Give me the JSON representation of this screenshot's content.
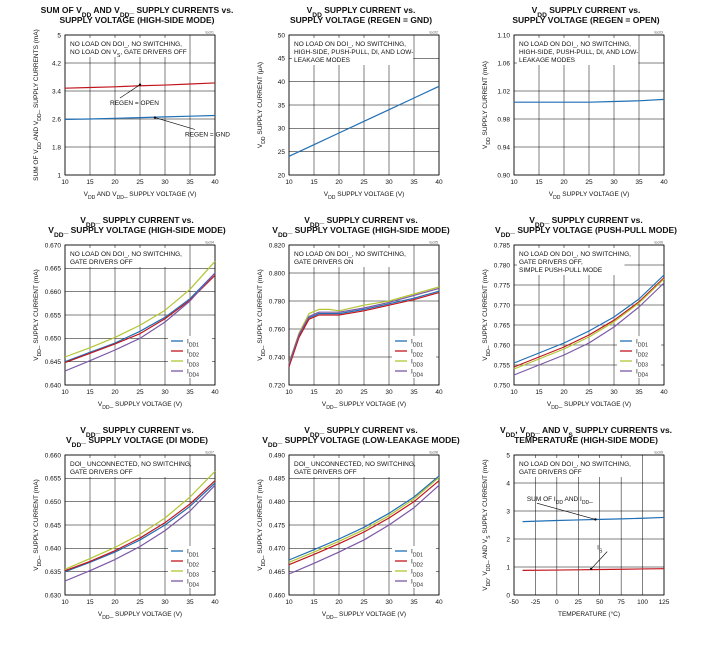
{
  "colors": {
    "blue": "#1f6fb5",
    "red": "#c2161e",
    "green": "#b3c531",
    "purple": "#7b57a6",
    "grid": "#000000"
  },
  "chart_data": [
    {
      "type": "line",
      "title": [
        "SUM OF V_DD AND V_DD_ SUPPLY CURRENTS vs.",
        "SUPPLY VOLTAGE (HIGH-SIDE MODE)"
      ],
      "code": "toc01",
      "xlabel": "V_DD AND V_DD_ SUPPLY VOLTAGE (V)",
      "ylabel": "SUM OF V_DD AND V_DD_ SUPPLY CURRENTS (mA)",
      "xlim": [
        10,
        40
      ],
      "ylim": [
        1.0,
        5.0
      ],
      "xticks": [
        "10",
        "15",
        "20",
        "25",
        "30",
        "35",
        "40"
      ],
      "yticks": [
        "1",
        "1.8",
        "2.6",
        "3.4",
        "4.2",
        "5"
      ],
      "grid": true,
      "notes": [
        "NO LOAD ON DOI_, NO SWITCHING,",
        "NO LOAD ON V_S, GATE DRIVERS OFF"
      ],
      "annotations": [
        {
          "text": "REGEN = OPEN",
          "x": 19,
          "y": 3.0,
          "arrow_to": [
            25,
            3.58
          ]
        },
        {
          "text": "REGEN = GND",
          "x": 34,
          "y": 2.1,
          "arrow_to": [
            28,
            2.64
          ]
        }
      ],
      "series": [
        {
          "color": "red",
          "x": [
            10,
            15,
            20,
            25,
            30,
            35,
            40
          ],
          "y": [
            3.48,
            3.5,
            3.52,
            3.55,
            3.57,
            3.6,
            3.63
          ]
        },
        {
          "color": "blue",
          "x": [
            10,
            15,
            20,
            25,
            30,
            35,
            40
          ],
          "y": [
            2.59,
            2.6,
            2.62,
            2.64,
            2.66,
            2.68,
            2.7
          ]
        }
      ]
    },
    {
      "type": "line",
      "title": [
        "V_DD SUPPLY CURRENT vs.",
        "SUPPLY VOLTAGE (REGEN = GND)"
      ],
      "code": "toc02",
      "xlabel": "V_DD SUPPLY VOLTAGE (V)",
      "ylabel": "V_DD SUPPLY CURRENT (μA)",
      "xlim": [
        10,
        40
      ],
      "ylim": [
        20,
        50
      ],
      "xticks": [
        "10",
        "15",
        "20",
        "25",
        "30",
        "35",
        "40"
      ],
      "yticks": [
        "20",
        "25",
        "30",
        "35",
        "40",
        "45",
        "50"
      ],
      "grid": true,
      "notes": [
        "NO LOAD ON DOI_, NO SWITCHING,",
        "HIGH-SIDE, PUSH-PULL, DI, AND LOW-",
        "LEAKAGE MODES"
      ],
      "annotations": [],
      "series": [
        {
          "color": "blue",
          "x": [
            10,
            15,
            20,
            25,
            30,
            35,
            40
          ],
          "y": [
            24.0,
            26.5,
            29.0,
            31.5,
            34.0,
            36.5,
            39.0
          ]
        }
      ]
    },
    {
      "type": "line",
      "title": [
        "V_DD SUPPLY CURRENT vs.",
        "SUPPLY VOLTAGE (REGEN = OPEN)"
      ],
      "code": "toc03",
      "xlabel": "V_DD SUPPLY VOLTAGE (V)",
      "ylabel": "V_DD SUPPLY CURRENT (mA)",
      "xlim": [
        10,
        40
      ],
      "ylim": [
        0.9,
        1.1
      ],
      "xticks": [
        "10",
        "15",
        "20",
        "25",
        "30",
        "35",
        "40"
      ],
      "yticks": [
        "0.90",
        "0.94",
        "0.98",
        "1.02",
        "1.06",
        "1.10"
      ],
      "grid": true,
      "notes": [
        "NO LOAD ON DOI_, NO SWITCHING,",
        "HIGH-SIDE, PUSH-PULL, DI, AND LOW-",
        "LEAKAGE MODES"
      ],
      "annotations": [],
      "series": [
        {
          "color": "blue",
          "x": [
            10,
            15,
            20,
            25,
            30,
            35,
            40
          ],
          "y": [
            1.004,
            1.004,
            1.004,
            1.004,
            1.005,
            1.006,
            1.008
          ]
        }
      ]
    },
    {
      "type": "line",
      "title": [
        "V_DD_ SUPPLY CURRENT vs.",
        "V_DD_ SUPPLY VOLTAGE (HIGH-SIDE MODE)"
      ],
      "code": "toc04",
      "xlabel": "V_DD_ SUPPLY VOLTAGE (V)",
      "ylabel": "V_DD_ SUPPLY CURRENT (mA)",
      "xlim": [
        10,
        40
      ],
      "ylim": [
        0.64,
        0.67
      ],
      "xticks": [
        "10",
        "15",
        "20",
        "25",
        "30",
        "35",
        "40"
      ],
      "yticks": [
        "0.640",
        "0.645",
        "0.650",
        "0.655",
        "0.660",
        "0.665",
        "0.670"
      ],
      "grid": true,
      "notes": [
        "NO LOAD ON DOI_, NO SWITCHING,",
        "GATE DRIVERS OFF"
      ],
      "annotations": [],
      "legend": [
        "I_DD1",
        "I_DD2",
        "I_DD3",
        "I_DD4"
      ],
      "series": [
        {
          "name": "I_DD1",
          "color": "blue",
          "x": [
            10,
            15,
            20,
            25,
            30,
            35,
            40
          ],
          "y": [
            0.645,
            0.647,
            0.649,
            0.6515,
            0.6545,
            0.6585,
            0.664
          ]
        },
        {
          "name": "I_DD2",
          "color": "red",
          "x": [
            10,
            15,
            20,
            25,
            30,
            35,
            40
          ],
          "y": [
            0.6448,
            0.6468,
            0.6488,
            0.651,
            0.6542,
            0.6582,
            0.6635
          ]
        },
        {
          "name": "I_DD3",
          "color": "green",
          "x": [
            10,
            15,
            20,
            25,
            30,
            35,
            40
          ],
          "y": [
            0.646,
            0.648,
            0.6502,
            0.6528,
            0.656,
            0.6605,
            0.6665
          ]
        },
        {
          "name": "I_DD4",
          "color": "purple",
          "x": [
            10,
            15,
            20,
            25,
            30,
            35,
            40
          ],
          "y": [
            0.643,
            0.6452,
            0.6475,
            0.65,
            0.6535,
            0.658,
            0.664
          ]
        }
      ]
    },
    {
      "type": "line",
      "title": [
        "V_DD_ SUPPLY CURRENT vs.",
        "V_DD_ SUPPLY VOLTAGE (HIGH-SIDE MODE)"
      ],
      "code": "toc05",
      "xlabel": "V_DD_ SUPPLY VOLTAGE (V)",
      "ylabel": "V_DD_ SUPPLY CURRENT (mA)",
      "xlim": [
        10,
        40
      ],
      "ylim": [
        0.72,
        0.82
      ],
      "xticks": [
        "10",
        "15",
        "20",
        "25",
        "30",
        "35",
        "40"
      ],
      "yticks": [
        "0.720",
        "0.740",
        "0.760",
        "0.780",
        "0.800",
        "0.820"
      ],
      "grid": true,
      "notes": [
        "NO LOAD ON DOI_, NO SWITCHING,",
        "GATE DRIVERS ON"
      ],
      "annotations": [],
      "legend": [
        "I_DD1",
        "I_DD2",
        "I_DD3",
        "I_DD4"
      ],
      "series": [
        {
          "name": "I_DD1",
          "color": "blue",
          "x": [
            10,
            12,
            14,
            16,
            18,
            20,
            25,
            30,
            35,
            40
          ],
          "y": [
            0.734,
            0.755,
            0.768,
            0.771,
            0.771,
            0.771,
            0.774,
            0.778,
            0.782,
            0.787
          ]
        },
        {
          "name": "I_DD2",
          "color": "red",
          "x": [
            10,
            12,
            14,
            16,
            18,
            20,
            25,
            30,
            35,
            40
          ],
          "y": [
            0.733,
            0.754,
            0.767,
            0.77,
            0.77,
            0.77,
            0.773,
            0.777,
            0.781,
            0.786
          ]
        },
        {
          "name": "I_DD3",
          "color": "green",
          "x": [
            10,
            12,
            14,
            16,
            18,
            20,
            25,
            30,
            35,
            40
          ],
          "y": [
            0.736,
            0.757,
            0.771,
            0.774,
            0.774,
            0.773,
            0.777,
            0.78,
            0.785,
            0.79
          ]
        },
        {
          "name": "I_DD4",
          "color": "purple",
          "x": [
            10,
            12,
            14,
            16,
            18,
            20,
            25,
            30,
            35,
            40
          ],
          "y": [
            0.735,
            0.756,
            0.769,
            0.772,
            0.772,
            0.772,
            0.775,
            0.779,
            0.784,
            0.789
          ]
        }
      ]
    },
    {
      "type": "line",
      "title": [
        "V_DD_ SUPPLY CURRENT vs.",
        "V_DD_ SUPPLY VOLTAGE (PUSH-PULL MODE)"
      ],
      "code": "toc06",
      "xlabel": "V_DD_ SUPPLY VOLTAGE (V)",
      "ylabel": "V_DD_ SUPPLY CURRENT (mA)",
      "xlim": [
        10,
        40
      ],
      "ylim": [
        0.75,
        0.785
      ],
      "xticks": [
        "10",
        "15",
        "20",
        "25",
        "30",
        "35",
        "40"
      ],
      "yticks": [
        "0.750",
        "0.755",
        "0.760",
        "0.765",
        "0.770",
        "0.775",
        "0.780",
        "0.785"
      ],
      "grid": true,
      "notes": [
        "NO LOAD ON DOI_, NO SWITCHING,",
        "GATE DRIVERS OFF,",
        "SIMPLE PUSH-PULL MODE"
      ],
      "annotations": [],
      "legend": [
        "I_DD1",
        "I_DD2",
        "I_DD3",
        "I_DD4"
      ],
      "series": [
        {
          "name": "I_DD1",
          "color": "blue",
          "x": [
            10,
            15,
            20,
            25,
            30,
            35,
            40
          ],
          "y": [
            0.7555,
            0.758,
            0.7605,
            0.7635,
            0.767,
            0.7715,
            0.7775
          ]
        },
        {
          "name": "I_DD2",
          "color": "red",
          "x": [
            10,
            15,
            20,
            25,
            30,
            35,
            40
          ],
          "y": [
            0.7545,
            0.757,
            0.7595,
            0.7625,
            0.7662,
            0.7708,
            0.7768
          ]
        },
        {
          "name": "I_DD3",
          "color": "green",
          "x": [
            10,
            15,
            20,
            25,
            30,
            35,
            40
          ],
          "y": [
            0.754,
            0.7565,
            0.759,
            0.762,
            0.7658,
            0.7705,
            0.7765
          ]
        },
        {
          "name": "I_DD4",
          "color": "purple",
          "x": [
            10,
            15,
            20,
            25,
            30,
            35,
            40
          ],
          "y": [
            0.7525,
            0.755,
            0.7575,
            0.7605,
            0.7645,
            0.7695,
            0.7755
          ]
        }
      ]
    },
    {
      "type": "line",
      "title": [
        "V_DD_ SUPPLY CURRENT vs.",
        "V_DD_ SUPPLY VOLTAGE (DI MODE)"
      ],
      "code": "toc07",
      "xlabel": "V_DD_ SUPPLY VOLTAGE (V)",
      "ylabel": "V_DD_ SUPPLY CURRENT (mA)",
      "xlim": [
        10,
        40
      ],
      "ylim": [
        0.63,
        0.66
      ],
      "xticks": [
        "10",
        "15",
        "20",
        "25",
        "30",
        "35",
        "40"
      ],
      "yticks": [
        "0.630",
        "0.635",
        "0.640",
        "0.645",
        "0.650",
        "0.655",
        "0.660"
      ],
      "grid": true,
      "notes": [
        "DOI_ UNCONNECTED, NO SWITCHING,",
        "GATE DRIVERS OFF"
      ],
      "annotations": [],
      "legend": [
        "I_DD1",
        "I_DD2",
        "I_DD3",
        "I_DD4"
      ],
      "series": [
        {
          "name": "I_DD1",
          "color": "blue",
          "x": [
            10,
            15,
            20,
            25,
            30,
            35,
            40
          ],
          "y": [
            0.635,
            0.637,
            0.6392,
            0.6418,
            0.645,
            0.649,
            0.654
          ]
        },
        {
          "name": "I_DD2",
          "color": "red",
          "x": [
            10,
            15,
            20,
            25,
            30,
            35,
            40
          ],
          "y": [
            0.6352,
            0.6372,
            0.6395,
            0.6422,
            0.6455,
            0.6495,
            0.6545
          ]
        },
        {
          "name": "I_DD3",
          "color": "green",
          "x": [
            10,
            15,
            20,
            25,
            30,
            35,
            40
          ],
          "y": [
            0.6355,
            0.6378,
            0.6402,
            0.643,
            0.6465,
            0.651,
            0.6565
          ]
        },
        {
          "name": "I_DD4",
          "color": "purple",
          "x": [
            10,
            15,
            20,
            25,
            30,
            35,
            40
          ],
          "y": [
            0.633,
            0.6352,
            0.6376,
            0.6404,
            0.6438,
            0.648,
            0.6535
          ]
        }
      ]
    },
    {
      "type": "line",
      "title": [
        "V_DD_ SUPPLY CURRENT vs.",
        "V_DD_ SUPPLY VOLTAGE (LOW-LEAKAGE MODE)"
      ],
      "code": "toc08",
      "xlabel": "V_DD_ SUPPLY VOLTAGE (V)",
      "ylabel": "V_DD_ SUPPLY CURRENT (mA)",
      "xlim": [
        10,
        40
      ],
      "ylim": [
        0.46,
        0.49
      ],
      "xticks": [
        "10",
        "15",
        "20",
        "25",
        "30",
        "35",
        "40"
      ],
      "yticks": [
        "0.460",
        "0.465",
        "0.470",
        "0.475",
        "0.480",
        "0.485",
        "0.490"
      ],
      "grid": true,
      "notes": [
        "DOI_ UNCONNECTED, NO SWITCHING,",
        "GATE DRIVERS OFF"
      ],
      "annotations": [],
      "legend": [
        "I_DD1",
        "I_DD2",
        "I_DD3",
        "I_DD4"
      ],
      "series": [
        {
          "name": "I_DD1",
          "color": "blue",
          "x": [
            10,
            15,
            20,
            25,
            30,
            35,
            40
          ],
          "y": [
            0.4675,
            0.4697,
            0.472,
            0.4745,
            0.4775,
            0.481,
            0.4855
          ]
        },
        {
          "name": "I_DD2",
          "color": "red",
          "x": [
            10,
            15,
            20,
            25,
            30,
            35,
            40
          ],
          "y": [
            0.4665,
            0.4687,
            0.471,
            0.4735,
            0.4765,
            0.48,
            0.4845
          ]
        },
        {
          "name": "I_DD3",
          "color": "green",
          "x": [
            10,
            15,
            20,
            25,
            30,
            35,
            40
          ],
          "y": [
            0.467,
            0.4692,
            0.4715,
            0.474,
            0.477,
            0.4806,
            0.4852
          ]
        },
        {
          "name": "I_DD4",
          "color": "purple",
          "x": [
            10,
            15,
            20,
            25,
            30,
            35,
            40
          ],
          "y": [
            0.4645,
            0.4668,
            0.4692,
            0.4718,
            0.475,
            0.4787,
            0.4835
          ]
        }
      ]
    },
    {
      "type": "line",
      "title": [
        "V_DD, V_DD_ AND V_S SUPPLY CURRENTS vs.",
        "TEMPERATURE (HIGH-SIDE MODE)"
      ],
      "code": "toc09",
      "xlabel": "TEMPERATURE (°C)",
      "ylabel": "V_DD, V_DD_ AND V_S SUPPLY CURRENT (mA)",
      "xlim": [
        -50,
        125
      ],
      "ylim": [
        0,
        5
      ],
      "xticks": [
        "-50",
        "-25",
        "0",
        "25",
        "50",
        "75",
        "100",
        "125"
      ],
      "yticks": [
        "0",
        "1",
        "2",
        "3",
        "4",
        "5"
      ],
      "grid": true,
      "notes": [
        "NO LOAD ON DOI_, NO SWITCHING,",
        "GATE DRIVERS OFF"
      ],
      "annotations": [
        {
          "text": "SUM OF I_DD AND I_DD_",
          "x": -35,
          "y": 3.35,
          "arrow_to": [
            45,
            2.7
          ]
        },
        {
          "text": "I_S",
          "x": 47,
          "y": 1.62,
          "arrow_to": [
            40,
            0.93
          ]
        }
      ],
      "series": [
        {
          "color": "blue",
          "x": [
            -40,
            0,
            25,
            50,
            75,
            100,
            125
          ],
          "y": [
            2.62,
            2.66,
            2.68,
            2.7,
            2.72,
            2.74,
            2.77
          ]
        },
        {
          "color": "red",
          "x": [
            -40,
            0,
            25,
            50,
            75,
            100,
            125
          ],
          "y": [
            0.88,
            0.89,
            0.9,
            0.91,
            0.92,
            0.93,
            0.94
          ]
        }
      ]
    }
  ]
}
